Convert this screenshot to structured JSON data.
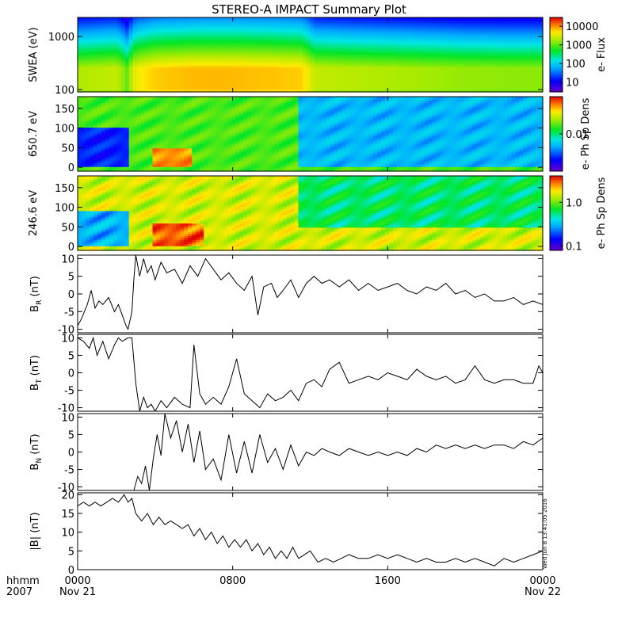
{
  "title": "STEREO-A IMPACT Summary Plot",
  "timestamp": "Wed Jun  8 13:41:05 2016",
  "time_axis": {
    "corner_labels": [
      "hhmm",
      "2007"
    ],
    "ticks": [
      {
        "hours": 0,
        "line1": "0000",
        "line2": "Nov 21"
      },
      {
        "hours": 8,
        "line1": "0800",
        "line2": ""
      },
      {
        "hours": 16,
        "line1": "1600",
        "line2": ""
      },
      {
        "hours": 24,
        "line1": "0000",
        "line2": "Nov 22"
      }
    ],
    "range_hours": [
      0,
      24
    ]
  },
  "colorbars": {
    "flux": {
      "label": "e- Flux",
      "ticks": [
        "10",
        "100",
        "1000",
        "10000"
      ],
      "scale": "log",
      "range": [
        3,
        30000
      ]
    },
    "dens1": {
      "label": "e- Ph Sp Dens",
      "ticks": [
        "0.01"
      ],
      "scale": "log",
      "range": [
        0.0005,
        0.2
      ]
    },
    "dens2": {
      "label": "e- Ph Sp Dens",
      "ticks": [
        "0.1",
        "1.0"
      ],
      "scale": "log",
      "range": [
        0.08,
        4
      ]
    }
  },
  "chart_data": [
    {
      "type": "heatmap",
      "ylabel": "SWEA (eV)",
      "yscale": "log",
      "ylim": [
        90,
        2300
      ],
      "yticks": [
        "100",
        "1000"
      ],
      "x_hours": [
        0,
        2,
        2.6,
        3,
        4,
        6,
        8,
        10,
        11.5,
        12.2,
        14,
        16,
        18,
        20,
        22,
        24
      ],
      "high_flux_band_ev": [
        100,
        250
      ],
      "peak_flux_by_hour": [
        2000,
        2500,
        900,
        4000,
        6000,
        7000,
        7000,
        6500,
        6000,
        2500,
        2200,
        2000,
        1800,
        1600,
        1500,
        1500
      ],
      "colorbar": "flux"
    },
    {
      "type": "heatmap",
      "ylabel": "650.7 eV",
      "ylim": [
        -10,
        180
      ],
      "yticks": [
        "0",
        "50",
        "100",
        "150"
      ],
      "features": [
        {
          "hours": [
            0,
            2.7
          ],
          "pitch_angle": [
            0,
            100
          ],
          "level": 0.0015
        },
        {
          "hours": [
            3.9,
            5.8
          ],
          "pitch_angle": [
            0,
            50
          ],
          "level": 0.1
        },
        {
          "hours": [
            11.3,
            24
          ],
          "pitch_angle": [
            0,
            180
          ],
          "level": 0.004
        }
      ],
      "background_level": 0.02,
      "colorbar": "dens1"
    },
    {
      "type": "heatmap",
      "ylabel": "246.6 eV",
      "ylim": [
        -10,
        180
      ],
      "yticks": [
        "0",
        "50",
        "100",
        "150"
      ],
      "features": [
        {
          "hours": [
            0,
            2.7
          ],
          "pitch_angle": [
            0,
            90
          ],
          "level": 0.3
        },
        {
          "hours": [
            3.9,
            6.5
          ],
          "pitch_angle": [
            0,
            60
          ],
          "level": 3.0
        },
        {
          "hours": [
            11.3,
            24
          ],
          "pitch_angle": [
            50,
            180
          ],
          "level": 0.6
        }
      ],
      "background_level": 1.5,
      "colorbar": "dens2"
    },
    {
      "type": "line",
      "ylabel": "BR (nT)",
      "ylabel_main": "B",
      "ylabel_sub": "R",
      "ylabel_unit": "(nT)",
      "ylim": [
        -11,
        11
      ],
      "yticks": [
        "-10",
        "-5",
        "0",
        "5",
        "10"
      ],
      "x": [
        0,
        0.2,
        0.5,
        0.7,
        0.9,
        1.1,
        1.3,
        1.6,
        1.9,
        2.1,
        2.3,
        2.5,
        2.6,
        2.8,
        2.9,
        3.0,
        3.2,
        3.4,
        3.6,
        3.8,
        4.0,
        4.3,
        4.6,
        5.0,
        5.4,
        5.8,
        6.2,
        6.6,
        7.0,
        7.4,
        7.8,
        8.2,
        8.6,
        9.0,
        9.3,
        9.6,
        10.0,
        10.3,
        10.6,
        11.0,
        11.4,
        11.8,
        12.2,
        12.6,
        13.0,
        13.5,
        14.0,
        14.5,
        15.0,
        15.5,
        16.0,
        16.5,
        17.0,
        17.5,
        18.0,
        18.5,
        19.0,
        19.5,
        20.0,
        20.5,
        21.0,
        21.5,
        22.0,
        22.5,
        23.0,
        23.5,
        24.0
      ],
      "y": [
        -9,
        -7,
        -3,
        1,
        -4,
        -2,
        -3,
        -1,
        -5,
        -3,
        -6,
        -9,
        -10,
        -5,
        4,
        11,
        5,
        10,
        6,
        8,
        4,
        9,
        6,
        7,
        3,
        8,
        5,
        10,
        7,
        4,
        6,
        3,
        1,
        5,
        -6,
        2,
        3,
        -1,
        1,
        4,
        -1,
        3,
        5,
        3,
        4,
        2,
        4,
        1,
        3,
        1,
        2,
        3,
        1,
        0,
        2,
        1,
        3,
        0,
        1,
        -1,
        0,
        -2,
        -2,
        -1,
        -3,
        -2,
        -3
      ]
    },
    {
      "type": "line",
      "ylabel": "BT (nT)",
      "ylabel_main": "B",
      "ylabel_sub": "T",
      "ylabel_unit": "(nT)",
      "ylim": [
        -11,
        11
      ],
      "yticks": [
        "-10",
        "-5",
        "0",
        "5",
        "10"
      ],
      "x": [
        0,
        0.3,
        0.6,
        0.8,
        1.0,
        1.3,
        1.6,
        1.9,
        2.1,
        2.3,
        2.6,
        2.8,
        3.0,
        3.2,
        3.4,
        3.6,
        3.8,
        4.0,
        4.3,
        4.6,
        5.0,
        5.4,
        5.8,
        6.0,
        6.3,
        6.6,
        7.0,
        7.4,
        7.8,
        8.2,
        8.6,
        9.0,
        9.4,
        9.8,
        10.2,
        10.6,
        11.0,
        11.4,
        11.8,
        12.2,
        12.6,
        13.0,
        13.5,
        14.0,
        14.5,
        15.0,
        15.5,
        16.0,
        16.5,
        17.0,
        17.5,
        18.0,
        18.5,
        19.0,
        19.5,
        20.0,
        20.5,
        21.0,
        21.5,
        22.0,
        22.5,
        23.0,
        23.5,
        23.8,
        24.0
      ],
      "y": [
        10,
        9,
        7,
        10,
        5,
        9,
        4,
        8,
        10,
        9,
        10,
        10,
        -3,
        -11,
        -7,
        -10,
        -9,
        -11,
        -8,
        -10,
        -7,
        -9,
        -10,
        8,
        -6,
        -9,
        -7,
        -9,
        -4,
        4,
        -6,
        -8,
        -10,
        -6,
        -8,
        -7,
        -5,
        -8,
        -3,
        -2,
        -4,
        1,
        3,
        -3,
        -2,
        -1,
        -2,
        0,
        -1,
        -2,
        1,
        -1,
        -2,
        -1,
        -3,
        -2,
        2,
        -2,
        -3,
        -2,
        -2,
        -3,
        -3,
        2,
        0
      ]
    },
    {
      "type": "line",
      "ylabel": "BN (nT)",
      "ylabel_main": "B",
      "ylabel_sub": "N",
      "ylabel_unit": "(nT)",
      "ylim": [
        -11,
        11
      ],
      "yticks": [
        "-10",
        "-5",
        "0",
        "5",
        "10"
      ],
      "x": [
        0,
        0.1,
        0.3,
        2.9,
        3.1,
        3.3,
        3.5,
        3.7,
        3.9,
        4.1,
        4.3,
        4.5,
        4.8,
        5.1,
        5.4,
        5.7,
        6.0,
        6.3,
        6.6,
        7.0,
        7.4,
        7.8,
        8.2,
        8.6,
        9.0,
        9.4,
        9.8,
        10.2,
        10.6,
        11.0,
        11.4,
        11.8,
        12.2,
        12.6,
        13.0,
        13.5,
        14.0,
        14.5,
        15.0,
        15.5,
        16.0,
        16.5,
        17.0,
        17.5,
        18.0,
        18.5,
        19.0,
        19.5,
        20.0,
        20.5,
        21.0,
        21.5,
        22.0,
        22.5,
        23.0,
        23.5,
        24.0
      ],
      "y": [
        -11,
        -11,
        -11,
        -11,
        -7,
        -9,
        -4,
        -11,
        -2,
        5,
        -1,
        11,
        4,
        9,
        0,
        8,
        -3,
        6,
        -5,
        -2,
        -8,
        5,
        -6,
        3,
        -6,
        5,
        -3,
        1,
        -5,
        2,
        -4,
        0,
        -1,
        1,
        0,
        -1,
        1,
        0,
        -1,
        0,
        -1,
        0,
        -1,
        1,
        0,
        2,
        1,
        2,
        1,
        2,
        1,
        2,
        2,
        1,
        3,
        2,
        4
      ]
    },
    {
      "type": "line",
      "ylabel": "|B| (nT)",
      "ylabel_main": "|B|",
      "ylabel_sub": "",
      "ylabel_unit": "(nT)",
      "ylim": [
        0,
        20.5
      ],
      "yticks": [
        "0",
        "5",
        "10",
        "15",
        "20"
      ],
      "x": [
        0,
        0.3,
        0.6,
        0.9,
        1.2,
        1.5,
        1.8,
        2.1,
        2.4,
        2.6,
        2.8,
        3.0,
        3.3,
        3.6,
        3.9,
        4.2,
        4.5,
        4.8,
        5.1,
        5.4,
        5.7,
        6.0,
        6.3,
        6.6,
        6.9,
        7.2,
        7.5,
        7.8,
        8.1,
        8.4,
        8.7,
        9.0,
        9.3,
        9.6,
        9.9,
        10.2,
        10.5,
        10.8,
        11.1,
        11.4,
        11.7,
        12.0,
        12.4,
        12.8,
        13.2,
        13.6,
        14.0,
        14.5,
        15.0,
        15.5,
        16.0,
        16.5,
        17.0,
        17.5,
        18.0,
        18.5,
        19.0,
        19.5,
        20.0,
        20.5,
        21.0,
        21.5,
        22.0,
        22.5,
        23.0,
        23.5,
        24.0
      ],
      "y": [
        17,
        18,
        17,
        18,
        17,
        18,
        19,
        18,
        20,
        18,
        19,
        15,
        13,
        15,
        12,
        14,
        12,
        13,
        12,
        11,
        12,
        9,
        11,
        8,
        10,
        7,
        9,
        6,
        8,
        6,
        8,
        5,
        7,
        4,
        6,
        3,
        5,
        3,
        6,
        3,
        4,
        5,
        2,
        3,
        2,
        3,
        4,
        3,
        3,
        4,
        3,
        4,
        3,
        2,
        3,
        2,
        2,
        3,
        2,
        3,
        2,
        1,
        3,
        2,
        3,
        4,
        5
      ]
    }
  ]
}
